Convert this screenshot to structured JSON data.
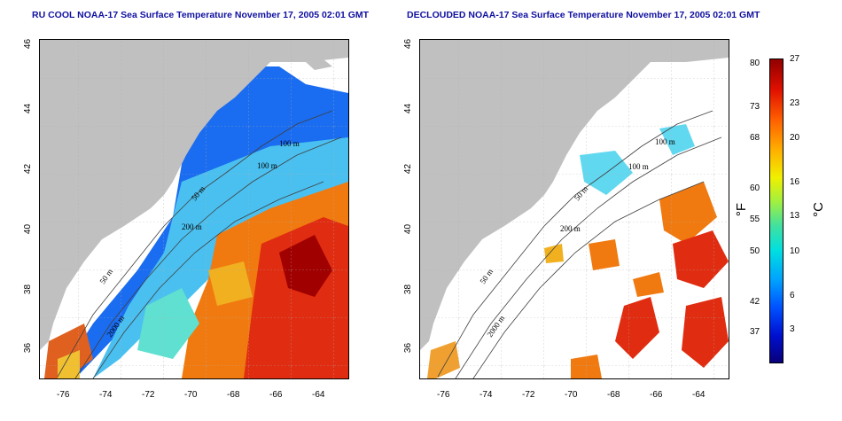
{
  "panels": [
    {
      "title": "RU COOL NOAA-17 Sea Surface Temperature November 17, 2005 02:01 GMT",
      "contour_labels": [
        "200 m",
        "100 m",
        "50 m",
        "100 m",
        "50 m",
        "2000 m"
      ]
    },
    {
      "title": "DECLOUDED NOAA-17 Sea Surface Temperature November 17, 2005 02:01 GMT",
      "contour_labels": [
        "100 m",
        "100 m",
        "50 m",
        "200 m",
        "50 m",
        "2000 m"
      ]
    }
  ],
  "axes": {
    "lon_ticks": [
      "-76",
      "-74",
      "-72",
      "-70",
      "-68",
      "-66",
      "-64"
    ],
    "lat_ticks": [
      "36",
      "38",
      "40",
      "42",
      "44",
      "46"
    ]
  },
  "colorbar": {
    "fahrenheit_label": "°F",
    "celsius_label": "°C",
    "fahrenheit_ticks": [
      "80",
      "73",
      "68",
      "60",
      "55",
      "50",
      "42",
      "37"
    ],
    "celsius_ticks": [
      "27",
      "23",
      "20",
      "16",
      "13",
      "10",
      "6",
      "3"
    ]
  },
  "colors": {
    "land": "#c0c0c0",
    "title": "#1010a0"
  }
}
